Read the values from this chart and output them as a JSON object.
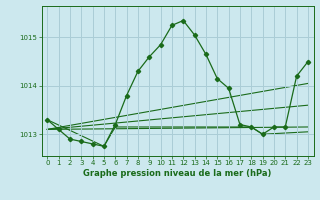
{
  "title": "Graphe pression niveau de la mer (hPa)",
  "background_color": "#cce8ee",
  "grid_color": "#aacdd6",
  "line_color": "#1a6b1a",
  "ylim": [
    1012.55,
    1015.65
  ],
  "xlim": [
    -0.5,
    23.5
  ],
  "yticks": [
    1013,
    1014,
    1015
  ],
  "xticks": [
    0,
    1,
    2,
    3,
    4,
    5,
    6,
    7,
    8,
    9,
    10,
    11,
    12,
    13,
    14,
    15,
    16,
    17,
    18,
    19,
    20,
    21,
    22,
    23
  ],
  "series1_x": [
    0,
    1,
    2,
    3,
    4,
    5,
    6,
    7,
    8,
    9,
    10,
    11,
    12,
    13,
    14,
    15,
    16,
    17,
    18,
    19,
    20,
    21,
    22,
    23
  ],
  "series1_y": [
    1013.3,
    1013.1,
    1012.9,
    1012.85,
    1012.8,
    1012.75,
    1013.2,
    1013.8,
    1014.3,
    1014.6,
    1014.85,
    1015.25,
    1015.35,
    1015.05,
    1014.65,
    1014.15,
    1013.95,
    1013.2,
    1013.15,
    1013.0,
    1013.15,
    1013.15,
    1014.2,
    1014.5
  ],
  "series2_x": [
    0,
    23
  ],
  "series2_y": [
    1013.1,
    1013.15
  ],
  "series3_x": [
    0,
    23
  ],
  "series3_y": [
    1013.1,
    1013.6
  ],
  "series4_x": [
    0,
    23
  ],
  "series4_y": [
    1013.1,
    1014.05
  ],
  "series5_x": [
    0,
    5,
    6,
    7,
    8,
    9,
    10,
    11,
    12,
    13,
    17,
    18,
    19,
    23
  ],
  "series5_y": [
    1013.3,
    1012.75,
    1013.15,
    1013.15,
    1013.15,
    1013.15,
    1013.15,
    1013.15,
    1013.15,
    1013.15,
    1013.15,
    1013.15,
    1013.0,
    1013.05
  ]
}
